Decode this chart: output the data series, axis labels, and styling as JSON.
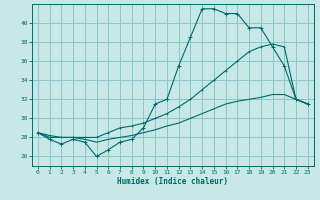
{
  "title": "",
  "xlabel": "Humidex (Indice chaleur)",
  "bg_color": "#c8e8e8",
  "grid_color": "#88c8c8",
  "line_color": "#006868",
  "xlim": [
    -0.5,
    23.5
  ],
  "ylim": [
    25.0,
    42.0
  ],
  "yticks": [
    26,
    28,
    30,
    32,
    34,
    36,
    38,
    40
  ],
  "xticks": [
    0,
    1,
    2,
    3,
    4,
    5,
    6,
    7,
    8,
    9,
    10,
    11,
    12,
    13,
    14,
    15,
    16,
    17,
    18,
    19,
    20,
    21,
    22,
    23
  ],
  "line1_x": [
    0,
    1,
    2,
    3,
    4,
    5,
    6,
    7,
    8,
    9,
    10,
    11,
    12,
    13,
    14,
    15,
    16,
    17,
    18,
    19,
    20,
    21,
    22,
    23
  ],
  "line1_y": [
    28.5,
    27.8,
    27.3,
    27.8,
    27.5,
    26.0,
    26.7,
    27.5,
    27.8,
    29.0,
    31.5,
    32.0,
    35.5,
    38.5,
    41.5,
    41.5,
    41.0,
    41.0,
    39.5,
    39.5,
    37.5,
    35.5,
    32.0,
    31.5
  ],
  "line2_x": [
    0,
    1,
    2,
    3,
    4,
    5,
    6,
    7,
    8,
    9,
    10,
    11,
    12,
    13,
    14,
    15,
    16,
    17,
    18,
    19,
    20,
    21,
    22,
    23
  ],
  "line2_y": [
    28.5,
    28.0,
    28.0,
    28.0,
    28.0,
    28.0,
    28.5,
    29.0,
    29.2,
    29.5,
    30.0,
    30.5,
    31.2,
    32.0,
    33.0,
    34.0,
    35.0,
    36.0,
    37.0,
    37.5,
    37.8,
    37.5,
    32.0,
    31.5
  ],
  "line3_x": [
    0,
    1,
    2,
    3,
    4,
    5,
    6,
    7,
    8,
    9,
    10,
    11,
    12,
    13,
    14,
    15,
    16,
    17,
    18,
    19,
    20,
    21,
    22,
    23
  ],
  "line3_y": [
    28.5,
    28.2,
    28.0,
    28.0,
    27.8,
    27.5,
    27.8,
    28.0,
    28.2,
    28.5,
    28.8,
    29.2,
    29.5,
    30.0,
    30.5,
    31.0,
    31.5,
    31.8,
    32.0,
    32.2,
    32.5,
    32.5,
    32.0,
    31.5
  ]
}
